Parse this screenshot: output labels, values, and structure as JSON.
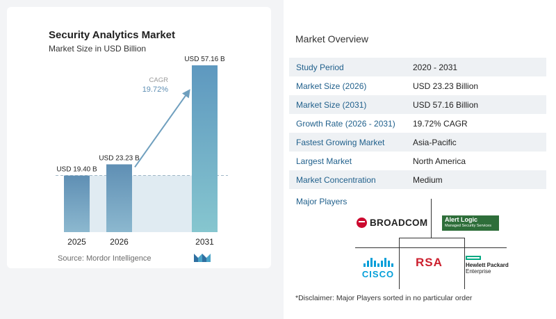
{
  "chart": {
    "title": "Security Analytics Market",
    "subtitle": "Market Size in USD Billion",
    "cagr_label": "CAGR",
    "cagr_value": "19.72%",
    "source_label": "Source:",
    "source_value": "Mordor Intelligence"
  },
  "chart_data": {
    "type": "bar",
    "title": "Security Analytics Market",
    "subtitle": "Market Size in USD Billion",
    "categories": [
      "2025",
      "2026",
      "2031"
    ],
    "values": [
      19.4,
      23.23,
      57.16
    ],
    "value_labels": [
      "USD 19.40 B",
      "USD 23.23 B",
      "USD 57.16 B"
    ],
    "annotations": [
      {
        "label": "CAGR",
        "value": "19.72%"
      }
    ],
    "ylim": [
      0,
      57.16
    ],
    "grid": false,
    "legend": "none",
    "colors": {
      "bar": "#6f9fbe",
      "bar_last": "#7db6c9",
      "arrow": "#6f9fbe",
      "area": "#e0ebf2"
    }
  },
  "overview": {
    "title": "Market Overview",
    "rows": [
      {
        "label": "Study Period",
        "value": "2020 - 2031"
      },
      {
        "label": "Market Size (2026)",
        "value": "USD 23.23 Billion"
      },
      {
        "label": "Market Size (2031)",
        "value": "USD 57.16 Billion"
      },
      {
        "label": "Growth Rate (2026 - 2031)",
        "value": "19.72% CAGR"
      },
      {
        "label": "Fastest Growing Market",
        "value": "Asia-Pacific"
      },
      {
        "label": "Largest Market",
        "value": "North America"
      },
      {
        "label": "Market Concentration",
        "value": "Medium"
      }
    ]
  },
  "players": {
    "title": "Major Players",
    "broadcom": "BROADCOM",
    "alertlogic_name": "Alert Logic",
    "alertlogic_sub": "Managed Security Services",
    "cisco": "CISCO",
    "rsa": "RSA",
    "hpe_line1": "Hewlett Packard",
    "hpe_line2": "Enterprise"
  },
  "disclaimer": "*Disclaimer: Major Players sorted in no particular order"
}
